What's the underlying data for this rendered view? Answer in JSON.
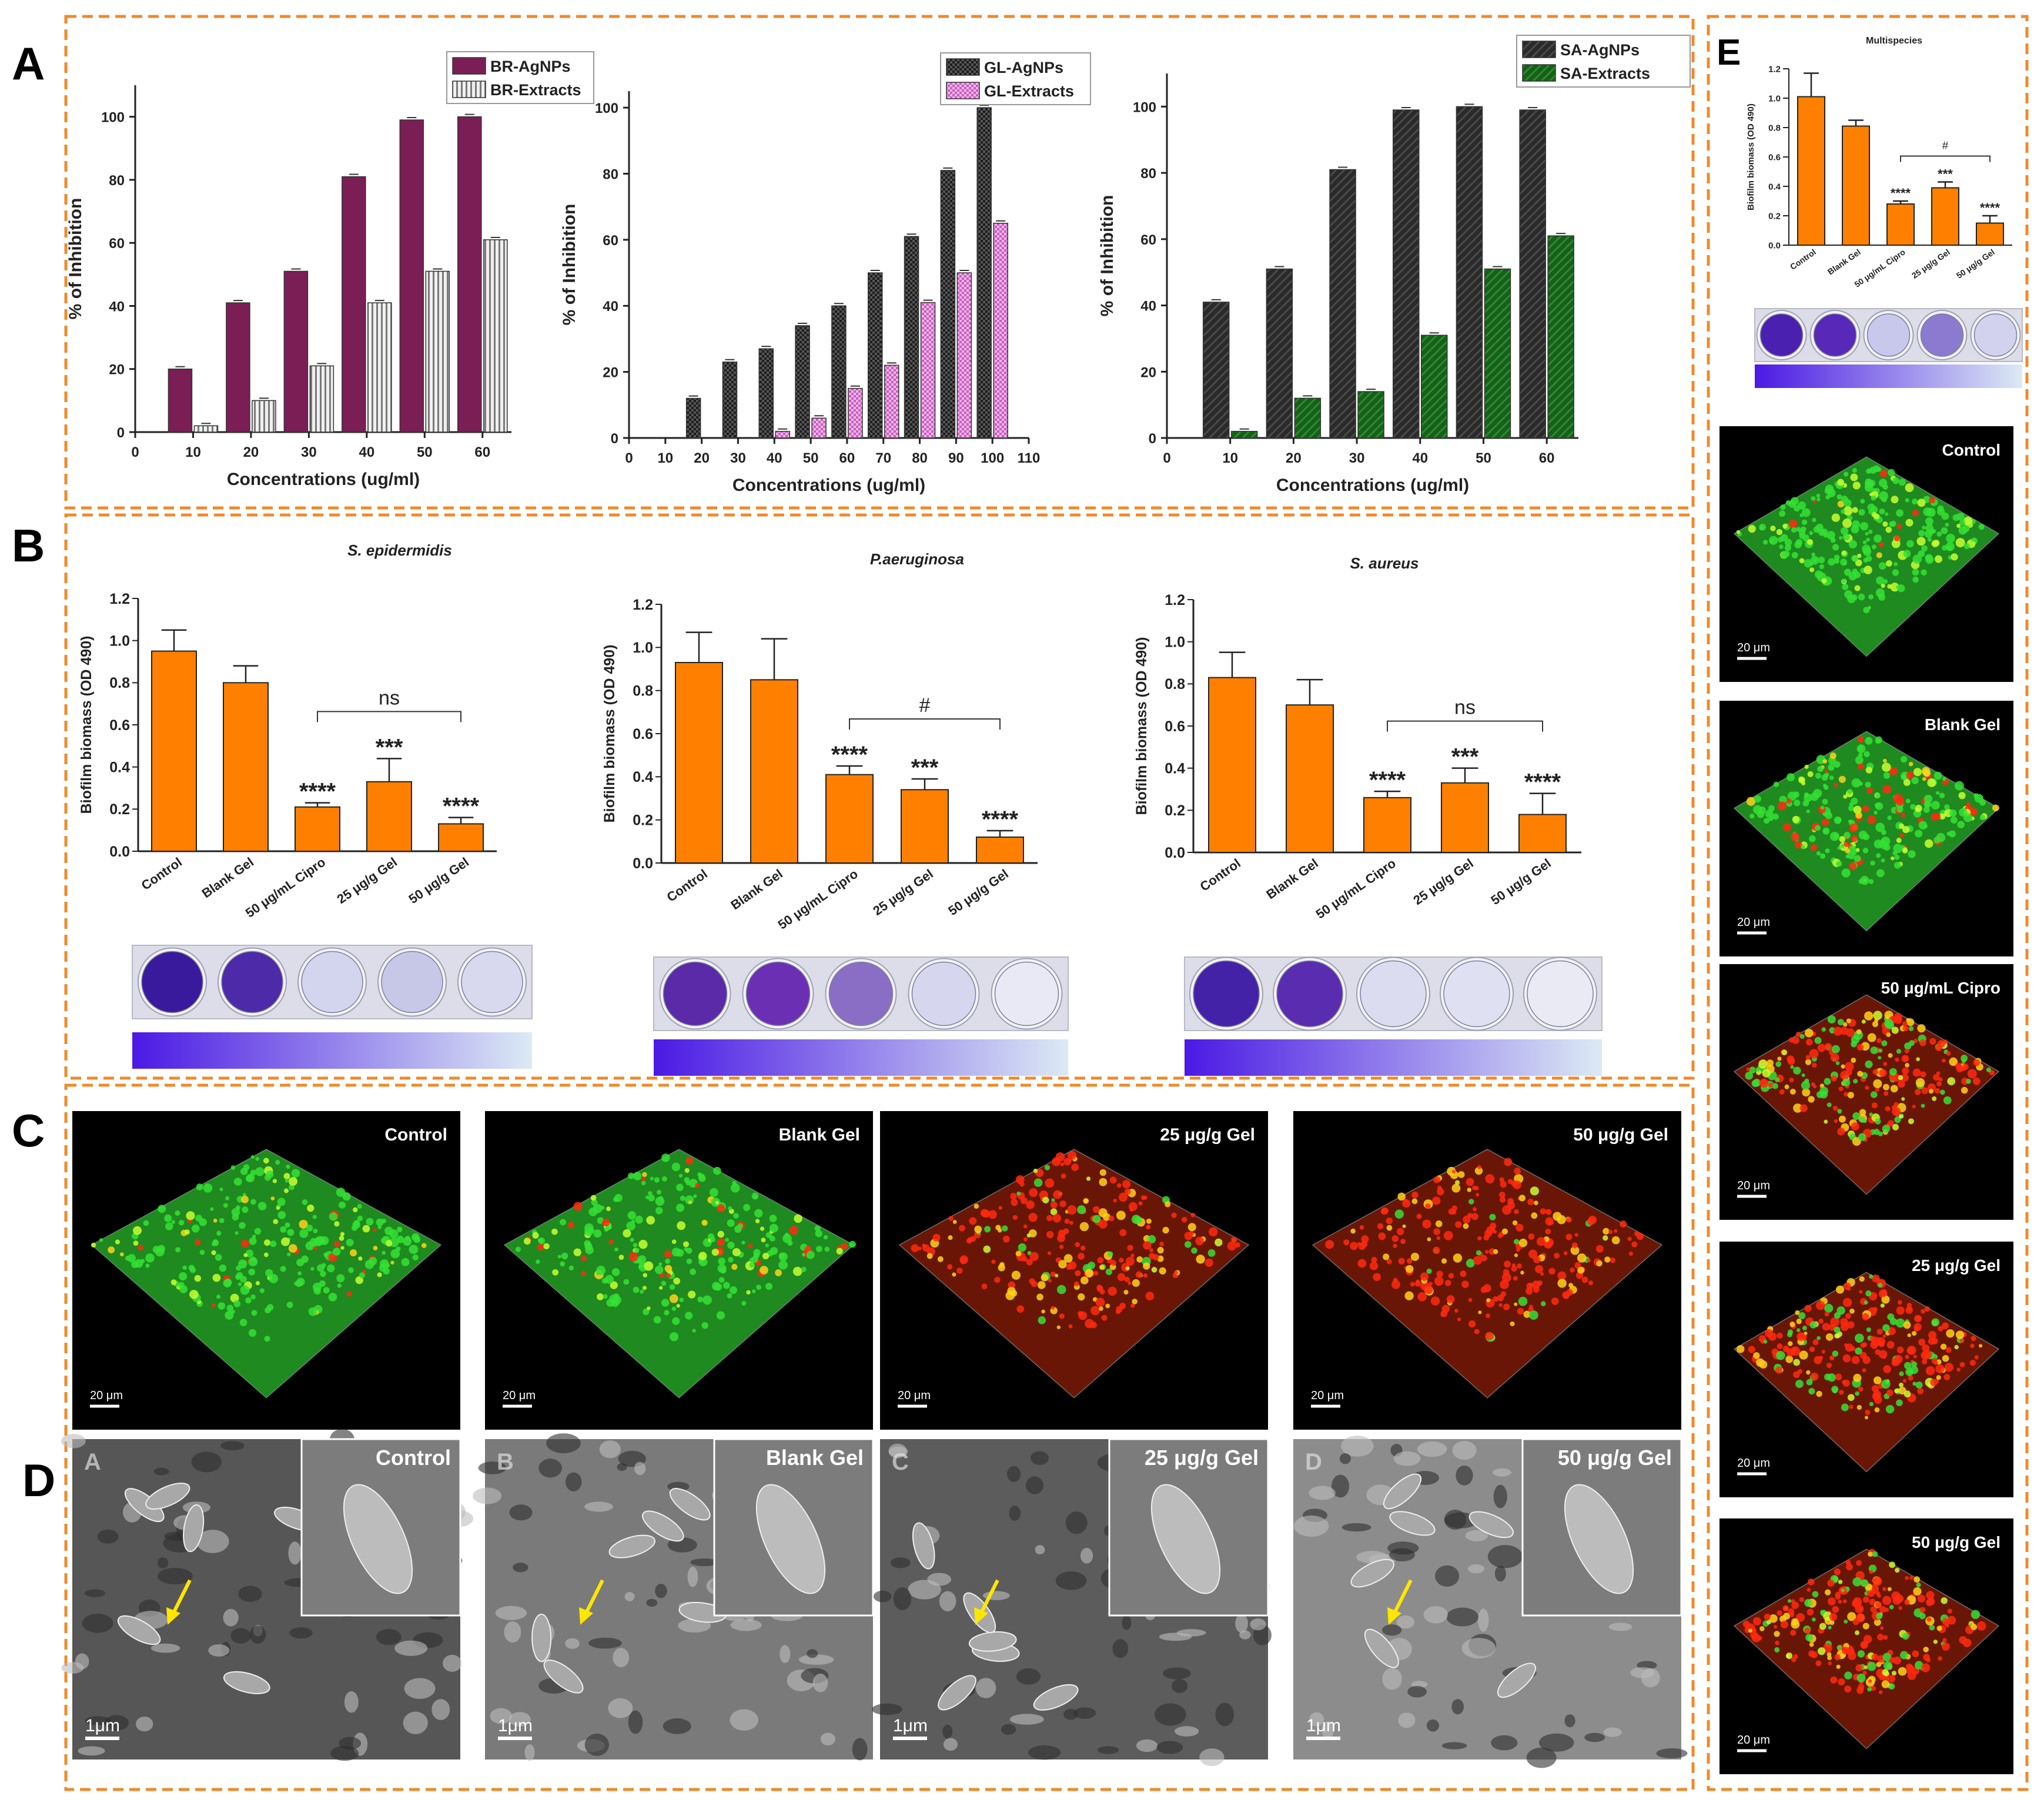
{
  "panel_letters": {
    "a": "A",
    "b": "B",
    "c": "C",
    "d": "D",
    "e": "E"
  },
  "chart_data": [
    {
      "id": "A1",
      "type": "bar",
      "title": "",
      "xlabel": "Concentrations (ug/ml)",
      "ylabel": "% of Inhibition",
      "ylim": [
        0,
        110
      ],
      "yticks": [
        0,
        20,
        40,
        60,
        80,
        100
      ],
      "xlim": [
        0,
        65
      ],
      "xticks": [
        0,
        10,
        20,
        30,
        40,
        50,
        60
      ],
      "x": [
        10,
        20,
        30,
        40,
        50,
        60
      ],
      "series": [
        {
          "name": "BR-AgNPs",
          "values": [
            20,
            41,
            51,
            81,
            99,
            100
          ],
          "color": "#7a1e55"
        },
        {
          "name": "BR-Extracts",
          "values": [
            2,
            10,
            21,
            41,
            51,
            61
          ],
          "color": "#e4e4e4"
        }
      ],
      "legend": "top-center"
    },
    {
      "id": "A2",
      "type": "bar",
      "title": "",
      "xlabel": "Concentrations (ug/ml)",
      "ylabel": "% of Inhibition",
      "ylim": [
        0,
        105
      ],
      "yticks": [
        0,
        20,
        40,
        60,
        80,
        100
      ],
      "xlim": [
        0,
        110
      ],
      "xticks": [
        0,
        10,
        20,
        30,
        40,
        50,
        60,
        70,
        80,
        90,
        100,
        110
      ],
      "x": [
        20,
        30,
        40,
        50,
        60,
        70,
        80,
        90,
        100
      ],
      "series": [
        {
          "name": "GL-AgNPs",
          "values": [
            12,
            23,
            27,
            34,
            40,
            50,
            61,
            81,
            100
          ],
          "color": "#2b2b2b"
        },
        {
          "name": "GL-Extracts",
          "values": [
            0,
            0,
            2,
            6,
            15,
            22,
            41,
            50,
            65
          ],
          "color": "#d478c8"
        }
      ],
      "legend": "top-right"
    },
    {
      "id": "A3",
      "type": "bar",
      "title": "",
      "xlabel": "Concentrations (ug/ml)",
      "ylabel": "% of Inhibition",
      "ylim": [
        0,
        110
      ],
      "yticks": [
        0,
        20,
        40,
        60,
        80,
        100
      ],
      "xlim": [
        0,
        65
      ],
      "xticks": [
        0,
        10,
        20,
        30,
        40,
        50,
        60
      ],
      "x": [
        10,
        20,
        30,
        40,
        50,
        60
      ],
      "series": [
        {
          "name": "SA-AgNPs",
          "values": [
            41,
            51,
            81,
            99,
            100,
            99
          ],
          "color": "#333333"
        },
        {
          "name": "SA-Extracts",
          "values": [
            2,
            12,
            14,
            31,
            51,
            61
          ],
          "color": "#1e6b1e"
        }
      ],
      "legend": "top-right"
    },
    {
      "id": "B1",
      "type": "bar",
      "title": "S. epidermidis",
      "xlabel": "",
      "ylabel": "Biofilm biomass (OD 490)",
      "ylim": [
        0,
        1.2
      ],
      "yticks": [
        "0.0",
        "0.2",
        "0.4",
        "0.6",
        "0.8",
        "1.0",
        "1.2"
      ],
      "categories": [
        "Control",
        "Blank Gel",
        "50 μg/mL Cipro",
        "25 μg/g Gel",
        "50 μg/g Gel"
      ],
      "values": [
        0.95,
        0.8,
        0.21,
        0.33,
        0.13
      ],
      "errors": [
        0.1,
        0.08,
        0.02,
        0.11,
        0.03
      ],
      "stars": [
        "",
        "",
        "****",
        "***",
        "****"
      ],
      "bracket_label": "ns",
      "color": "#ff8000"
    },
    {
      "id": "B2",
      "type": "bar",
      "title": "P.aeruginosa",
      "xlabel": "",
      "ylabel": "Biofilm biomass (OD 490)",
      "ylim": [
        0,
        1.2
      ],
      "yticks": [
        "0.0",
        "0.2",
        "0.4",
        "0.6",
        "0.8",
        "1.0",
        "1.2"
      ],
      "categories": [
        "Control",
        "Blank Gel",
        "50 μg/mL Cipro",
        "25 μg/g Gel",
        "50 μg/g Gel"
      ],
      "values": [
        0.93,
        0.85,
        0.41,
        0.34,
        0.12
      ],
      "errors": [
        0.14,
        0.19,
        0.04,
        0.05,
        0.03
      ],
      "stars": [
        "",
        "",
        "****",
        "***",
        "****"
      ],
      "bracket_label": "#",
      "color": "#ff8000"
    },
    {
      "id": "B3",
      "type": "bar",
      "title": "S. aureus",
      "xlabel": "",
      "ylabel": "Biofilm biomass (OD 490)",
      "ylim": [
        0,
        1.2
      ],
      "yticks": [
        "0.0",
        "0.2",
        "0.4",
        "0.6",
        "0.8",
        "1.0",
        "1.2"
      ],
      "categories": [
        "Control",
        "Blank Gel",
        "50 μg/mL Cipro",
        "25 μg/g Gel",
        "50 μg/g Gel"
      ],
      "values": [
        0.83,
        0.7,
        0.26,
        0.33,
        0.18
      ],
      "errors": [
        0.12,
        0.12,
        0.03,
        0.07,
        0.1
      ],
      "stars": [
        "",
        "",
        "****",
        "***",
        "****"
      ],
      "bracket_label": "ns",
      "color": "#ff8000"
    },
    {
      "id": "E",
      "type": "bar",
      "title": "Multispecies",
      "xlabel": "",
      "ylabel": "Biofilm biomass (OD 490)",
      "ylim": [
        0,
        1.2
      ],
      "yticks": [
        "0.0",
        "0.2",
        "0.4",
        "0.6",
        "0.8",
        "1.0",
        "1.2"
      ],
      "categories": [
        "Control",
        "Blank Gel",
        "50 μg/mL Cipro",
        "25 μg/g Gel",
        "50 μg/g Gel"
      ],
      "values": [
        1.01,
        0.81,
        0.28,
        0.39,
        0.15
      ],
      "errors": [
        0.16,
        0.04,
        0.02,
        0.04,
        0.05
      ],
      "stars": [
        "",
        "",
        "****",
        "***",
        "****"
      ],
      "bracket_label": "#",
      "color": "#ff8000"
    }
  ],
  "wells": {
    "B1": [
      "#3a1a9c",
      "#4c2aa8",
      "#d3d4ee",
      "#c7c8e8",
      "#d8d9ef"
    ],
    "B2": [
      "#5a2aa8",
      "#6b2fb4",
      "#8a6dc4",
      "#d6d6ee",
      "#e8e9f4"
    ],
    "B3": [
      "#4422a8",
      "#5a2cb0",
      "#dcdcf0",
      "#dfe0f2",
      "#eaeaf5"
    ],
    "E": [
      "#4a20b0",
      "#5828b8",
      "#c8c8ec",
      "#8c7ad0",
      "#d2d2ee"
    ]
  },
  "gradient": {
    "from": "#4b19e4",
    "to": "#dceaf4"
  },
  "confocal": {
    "c_labels": [
      "Control",
      "Blank Gel",
      "25 μg/g Gel",
      "50 μg/g Gel"
    ],
    "e_labels": [
      "Control",
      "Blank Gel",
      "50 μg/mL Cipro",
      "25 μg/g Gel",
      "50 μg/g Gel"
    ],
    "scale": "20 μm"
  },
  "sem": {
    "labels": [
      "Control",
      "Blank Gel",
      "25 μg/g Gel",
      "50 μg/g Gel"
    ],
    "sub_letters": [
      "A",
      "B",
      "C",
      "D"
    ],
    "scale": "1μm"
  }
}
